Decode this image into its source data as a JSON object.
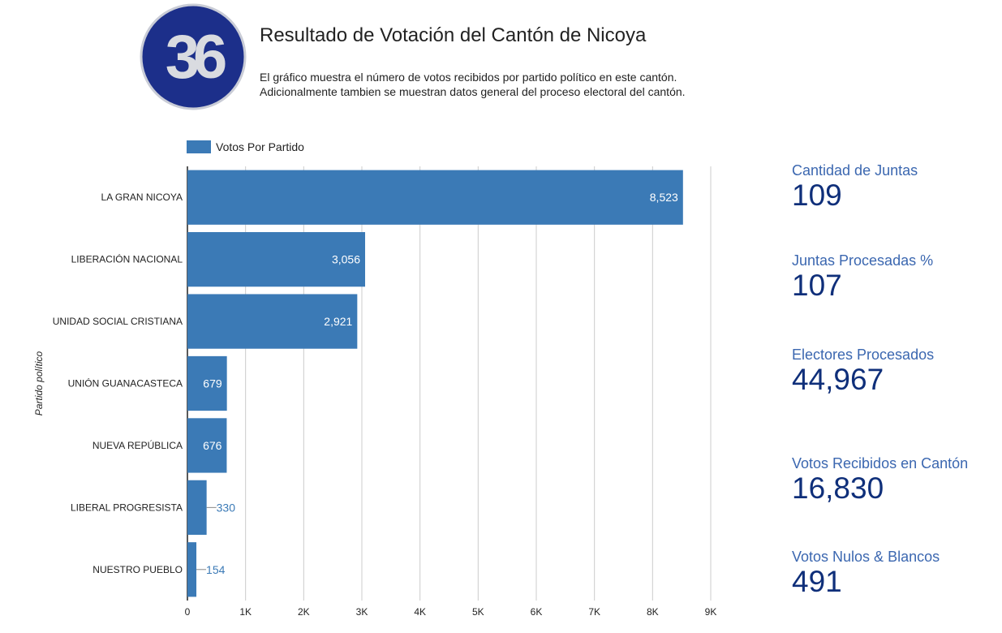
{
  "header": {
    "logo_text": "36",
    "title": "Resultado de Votación del Cantón de Nicoya",
    "subtitle_line1": "El gráfico muestra el número de votos recibidos por partido político en este cantón.",
    "subtitle_line2": "Adicionalmente tambien se muestran datos general del proceso electoral del cantón."
  },
  "colors": {
    "bar": "#3b7ab6",
    "logo_ring": "#1c2f8a",
    "kpi_label": "#3b67b0",
    "kpi_value": "#0f2f7a"
  },
  "chart_data": {
    "type": "bar",
    "orientation": "horizontal",
    "legend": "Votos Por Partido",
    "legend_position": "top-left",
    "ylabel": "Partido político",
    "xlabel": "",
    "xlim": [
      0,
      9000
    ],
    "xticks": [
      "0",
      "1K",
      "2K",
      "3K",
      "4K",
      "5K",
      "6K",
      "7K",
      "8K",
      "9K"
    ],
    "grid": true,
    "categories": [
      "LA GRAN NICOYA",
      "LIBERACIÓN NACIONAL",
      "UNIDAD SOCIAL CRISTIANA",
      "UNIÓN GUANACASTECA",
      "NUEVA REPÚBLICA",
      "LIBERAL PROGRESISTA",
      "NUESTRO PUEBLO"
    ],
    "values": [
      8523,
      3056,
      2921,
      679,
      676,
      330,
      154
    ],
    "value_labels": [
      "8,523",
      "3,056",
      "2,921",
      "679",
      "676",
      "330",
      "154"
    ]
  },
  "kpis": [
    {
      "label": "Cantidad de Juntas",
      "value": "109"
    },
    {
      "label": "Juntas Procesadas %",
      "value": "107"
    },
    {
      "label": "Electores Procesados",
      "value": "44,967"
    },
    {
      "label": "Votos Recibidos en Cantón",
      "value": "16,830"
    },
    {
      "label": "Votos Nulos & Blancos",
      "value": "491"
    }
  ]
}
